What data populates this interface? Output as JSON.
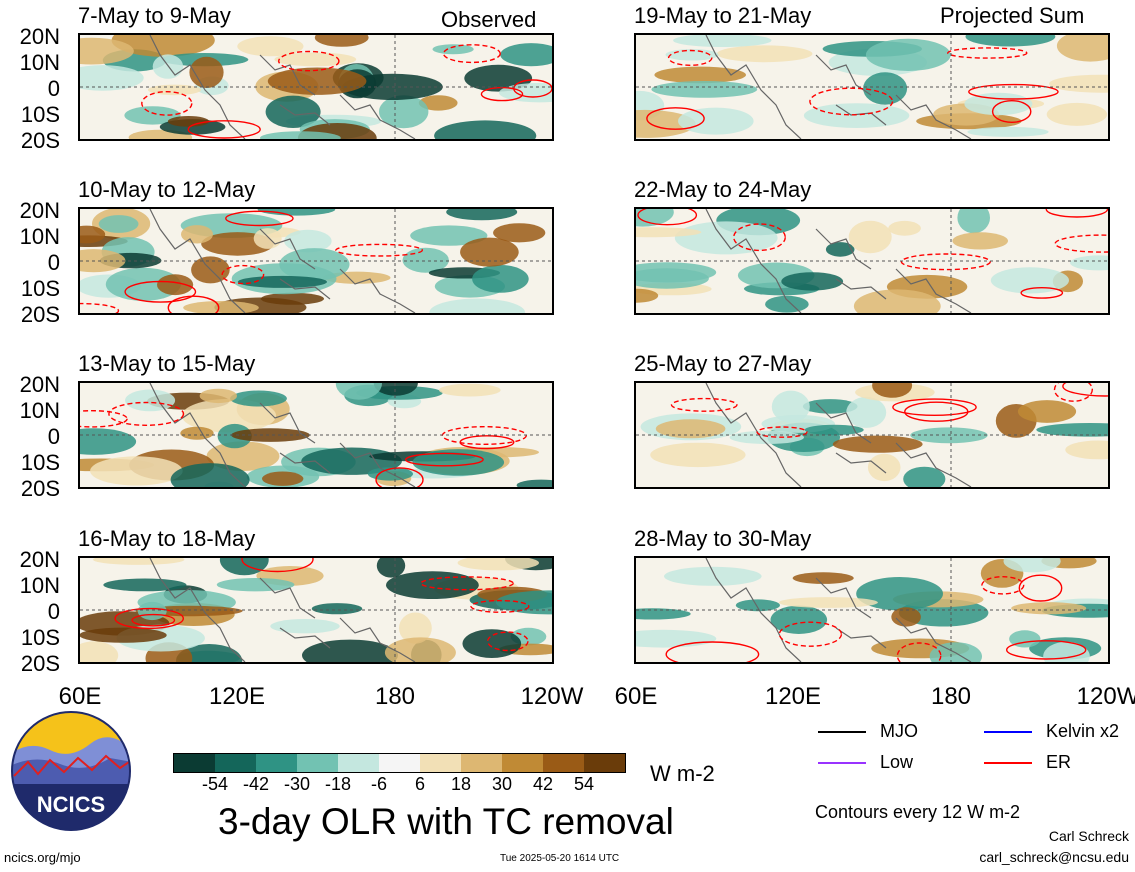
{
  "observed_label": "Observed",
  "projected_label": "Projected Sum",
  "panels": [
    {
      "title": "7-May to 9-May"
    },
    {
      "title": "10-May to 12-May"
    },
    {
      "title": "13-May to 15-May"
    },
    {
      "title": "16-May to 18-May"
    },
    {
      "title": "19-May to 21-May"
    },
    {
      "title": "22-May to 24-May"
    },
    {
      "title": "25-May to 27-May"
    },
    {
      "title": "28-May to 30-May"
    }
  ],
  "lat_ticks": [
    "20N",
    "10N",
    "0",
    "10S",
    "20S"
  ],
  "lon_ticks": [
    "60E",
    "120E",
    "180",
    "120W"
  ],
  "colorbar": {
    "ticks": [
      "-54",
      "-42",
      "-30",
      "-18",
      "-6",
      "6",
      "18",
      "30",
      "42",
      "54"
    ],
    "unit": "W m-2",
    "colors": [
      "#0b3b33",
      "#14665a",
      "#2f9384",
      "#72c2b2",
      "#c4e7df",
      "#f5f5f5",
      "#f2e0b6",
      "#ddb772",
      "#c08a35",
      "#9a5b16",
      "#6a3c0a"
    ]
  },
  "main_title": "3-day OLR with TC removal",
  "legend": [
    {
      "label": "MJO",
      "color": "#000000"
    },
    {
      "label": "Kelvin x2",
      "color": "#0000ff"
    },
    {
      "label": "Low",
      "color": "#9933ff"
    },
    {
      "label": "ER",
      "color": "#ff0000"
    }
  ],
  "contour_note": "Contours every 12 W m-2",
  "author": "Carl Schreck",
  "email": "carl_schreck@ncsu.edu",
  "website": "ncics.org/mjo",
  "timestamp": "Tue 2025-05-20 1614 UTC",
  "logo_text": "NCICS"
}
